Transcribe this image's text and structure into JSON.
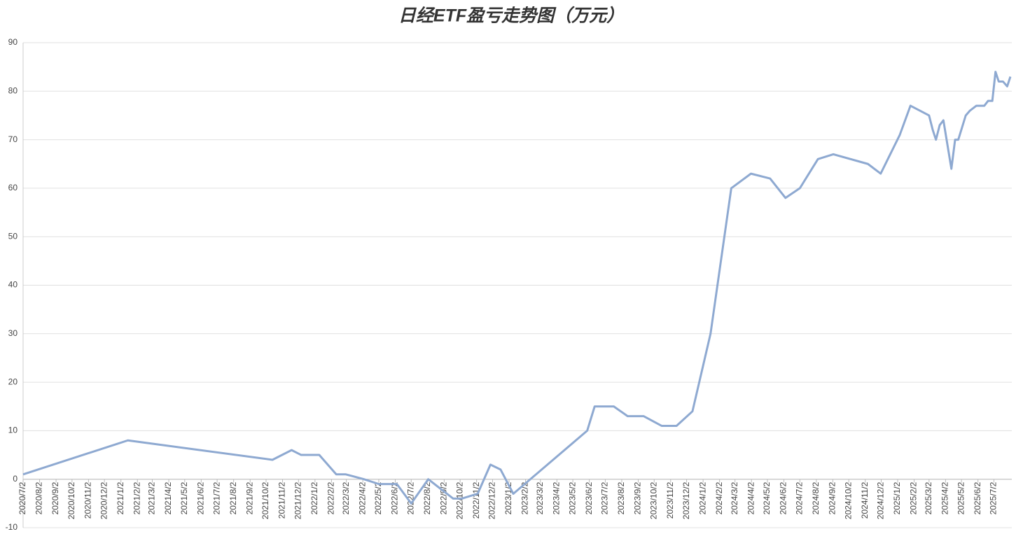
{
  "chart_data": {
    "type": "line",
    "title": "日经ETF盈亏走势图（万元）",
    "x": [
      "2020/7/2",
      "2021/1/15",
      "2021/10/14",
      "2021/11/19",
      "2021/12/7",
      "2022/1/10",
      "2022/2/11",
      "2022/3/1",
      "2022/4/4",
      "2022/5/2",
      "2022/6/5",
      "2022/7/2",
      "2022/8/3",
      "2022/9/19",
      "2022/10/5",
      "2022/11/4",
      "2022/11/28",
      "2022/12/17",
      "2023/1/10",
      "2023/5/29",
      "2023/6/12",
      "2023/7/18",
      "2023/8/13",
      "2023/9/12",
      "2023/10/16",
      "2023/11/13",
      "2023/12/13",
      "2024/1/16",
      "2024/2/24",
      "2024/4/1",
      "2024/5/7",
      "2024/6/5",
      "2024/7/2",
      "2024/8/5",
      "2024/9/3",
      "2024/11/7",
      "2024/12/1",
      "2025/1/6",
      "2025/1/26",
      "2025/3/2",
      "2025/3/9",
      "2025/3/15",
      "2025/3/22",
      "2025/3/29",
      "2025/4/13",
      "2025/4/20",
      "2025/4/26",
      "2025/5/10",
      "2025/5/18",
      "2025/5/30",
      "2025/6/14",
      "2025/6/21",
      "2025/6/29",
      "2025/7/5",
      "2025/7/11",
      "2025/7/19",
      "2025/7/27",
      "2025/8/2"
    ],
    "values": [
      1,
      8,
      4,
      6,
      5,
      5,
      1,
      1,
      0,
      -1,
      -1,
      -5,
      0,
      -4,
      -4,
      -3,
      3,
      2,
      -3,
      10,
      15,
      15,
      13,
      13,
      11,
      11,
      14,
      30,
      60,
      63,
      62,
      58,
      60,
      66,
      67,
      65,
      63,
      71,
      77,
      75,
      72,
      70,
      73,
      74,
      64,
      70,
      70,
      75,
      76,
      77,
      77,
      78,
      78,
      84,
      82,
      82,
      81,
      83
    ],
    "color": "#8ea9d1",
    "xlim": [
      "2020/7/2",
      "2025/8/2"
    ],
    "xticks": [
      "2020/7/2",
      "2020/8/2",
      "2020/9/2",
      "2020/10/2",
      "2020/11/2",
      "2020/12/2",
      "2021/1/2",
      "2021/2/2",
      "2021/3/2",
      "2021/4/2",
      "2021/5/2",
      "2021/6/2",
      "2021/7/2",
      "2021/8/2",
      "2021/9/2",
      "2021/10/2",
      "2021/11/2",
      "2021/12/2",
      "2022/1/2",
      "2022/2/2",
      "2022/3/2",
      "2022/4/2",
      "2022/5/2",
      "2022/6/2",
      "2022/7/2",
      "2022/8/2",
      "2022/9/2",
      "2022/10/2",
      "2022/11/2",
      "2022/12/2",
      "2023/1/2",
      "2023/2/2",
      "2023/3/2",
      "2023/4/2",
      "2023/5/2",
      "2023/6/2",
      "2023/7/2",
      "2023/8/2",
      "2023/9/2",
      "2023/10/2",
      "2023/11/2",
      "2023/12/2",
      "2024/1/2",
      "2024/2/2",
      "2024/3/2",
      "2024/4/2",
      "2024/5/2",
      "2024/6/2",
      "2024/7/2",
      "2024/8/2",
      "2024/9/2",
      "2024/10/2",
      "2024/11/2",
      "2024/12/2",
      "2025/1/2",
      "2025/2/2",
      "2025/3/2",
      "2025/4/2",
      "2025/5/2",
      "2025/6/2",
      "2025/7/2"
    ],
    "ylim": [
      -10,
      90
    ],
    "yticks": [
      -10,
      0,
      10,
      20,
      30,
      40,
      50,
      60,
      70,
      80,
      90
    ],
    "grid": true
  }
}
